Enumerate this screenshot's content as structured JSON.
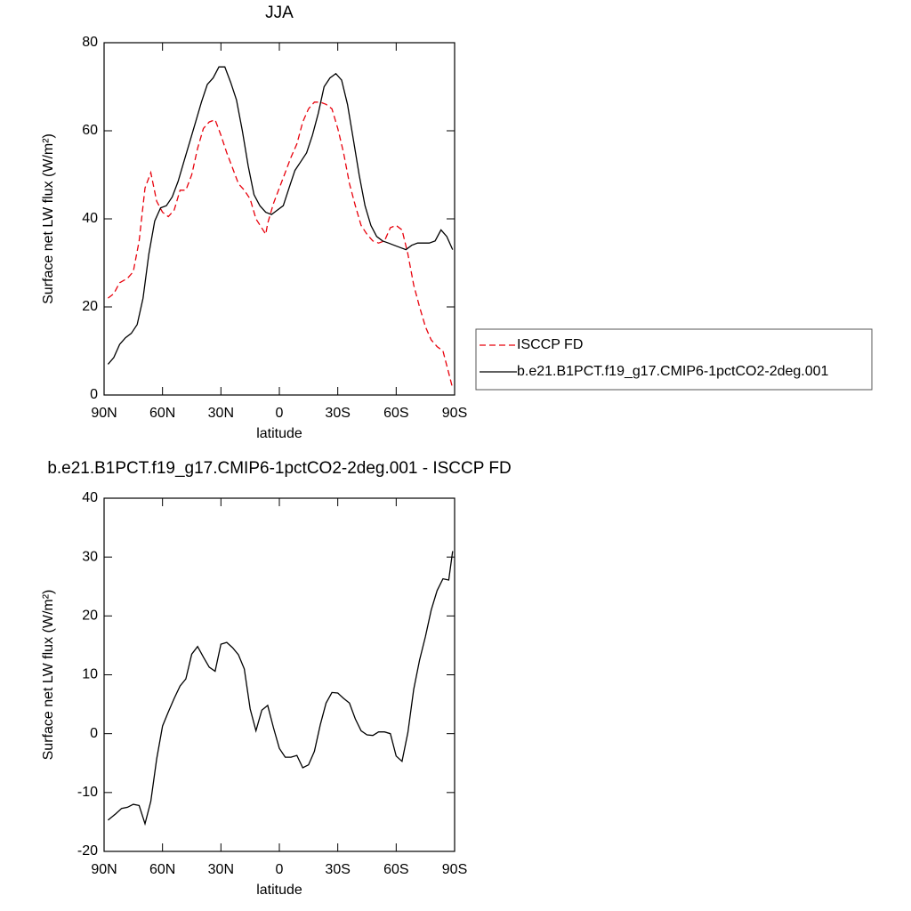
{
  "chart_data": [
    {
      "type": "line",
      "title": "JJA",
      "xlabel": "latitude",
      "ylabel": "Surface net LW flux (W/m²)",
      "xlim": [
        90,
        -90
      ],
      "xticks": [
        {
          "value": 90,
          "label": "90N"
        },
        {
          "value": 60,
          "label": "60N"
        },
        {
          "value": 30,
          "label": "30N"
        },
        0,
        {
          "value": -30,
          "label": "30S"
        },
        {
          "value": -60,
          "label": "60S"
        },
        {
          "value": -90,
          "label": "90S"
        }
      ],
      "ylim": [
        0,
        80
      ],
      "yticks": [
        0,
        20,
        40,
        60,
        80
      ],
      "legend": "right",
      "series": [
        {
          "name": "ISCCP FD",
          "color": "#e8000b",
          "line_style": "dashed",
          "x": [
            88,
            85,
            82,
            78,
            75,
            72,
            69,
            66,
            63,
            60,
            57,
            54,
            51,
            48,
            45,
            42,
            39,
            36,
            33,
            30,
            27,
            24,
            21,
            18,
            15,
            12,
            7,
            6,
            3,
            0,
            -3,
            -6,
            -9,
            -12,
            -15,
            -18,
            -21,
            -24,
            -27,
            -30,
            -33,
            -36,
            -39,
            -42,
            -45,
            -48,
            -51,
            -54,
            -57,
            -60,
            -63,
            -66,
            -69,
            -72,
            -75,
            -78,
            -81,
            -84,
            -87,
            -89
          ],
          "values": [
            22,
            23,
            25.5,
            26.5,
            28,
            35,
            47,
            50.5,
            44,
            41.5,
            40.5,
            42,
            46.5,
            46.5,
            50,
            56,
            60.5,
            62,
            62.5,
            59,
            55,
            51.5,
            48,
            46.5,
            44.5,
            40,
            36.5,
            39,
            43.5,
            47,
            50.5,
            54,
            57,
            62,
            65,
            66.5,
            66.5,
            66,
            65,
            60.5,
            55,
            48,
            43,
            38.5,
            36.5,
            35,
            34.5,
            35,
            38,
            38.5,
            37.5,
            32,
            25,
            20,
            15.5,
            12.5,
            11,
            10,
            5,
            1.5
          ]
        },
        {
          "name": "b.e21.B1PCT.f19_g17.CMIP6-1pctCO2-2deg.001",
          "color": "#000000",
          "line_style": "solid",
          "x": [
            88,
            85,
            82,
            79,
            76,
            73,
            70,
            67,
            64,
            61,
            58,
            55,
            52,
            49,
            46,
            43,
            40,
            37,
            34,
            31,
            28,
            25,
            22,
            19,
            16,
            13,
            10,
            7,
            4,
            1,
            -2,
            -5,
            -8,
            -11,
            -14,
            -17,
            -20,
            -23,
            -26,
            -29,
            -32,
            -35,
            -38,
            -41,
            -44,
            -47,
            -50,
            -53,
            -56,
            -59,
            -62,
            -65,
            -68,
            -71,
            -74,
            -77,
            -80,
            -83,
            -86,
            -89
          ],
          "values": [
            7,
            8.5,
            11.5,
            13,
            14,
            16,
            22,
            32,
            39.5,
            42.5,
            43,
            45,
            48.5,
            53,
            57.5,
            62,
            66.5,
            70.5,
            72,
            74.5,
            74.5,
            71,
            67,
            60,
            52,
            45.5,
            43,
            41.5,
            41,
            42,
            43,
            47,
            51,
            53,
            55,
            59,
            64,
            70,
            72,
            73,
            71.5,
            66,
            58,
            50,
            43,
            38.5,
            36,
            35,
            34.5,
            34,
            33.5,
            33,
            34,
            34.5,
            34.5,
            34.5,
            35,
            37.5,
            36,
            33
          ]
        }
      ]
    },
    {
      "type": "line",
      "title": "b.e21.B1PCT.f19_g17.CMIP6-1pctCO2-2deg.001 - ISCCP FD",
      "xlabel": "latitude",
      "ylabel": "Surface net LW flux (W/m²)",
      "xlim": [
        90,
        -90
      ],
      "xticks": [
        {
          "value": 90,
          "label": "90N"
        },
        {
          "value": 60,
          "label": "60N"
        },
        {
          "value": 30,
          "label": "30N"
        },
        0,
        {
          "value": -30,
          "label": "30S"
        },
        {
          "value": -60,
          "label": "60S"
        },
        {
          "value": -90,
          "label": "90S"
        }
      ],
      "ylim": [
        -20,
        40
      ],
      "yticks": [
        -20,
        -10,
        0,
        10,
        20,
        30,
        40
      ],
      "series": [
        {
          "color": "#000000",
          "line_style": "solid",
          "x": [
            88,
            84,
            81,
            78,
            75,
            72,
            69,
            66,
            63,
            60,
            57,
            54,
            51,
            48,
            45,
            42,
            39,
            36,
            33,
            30,
            27,
            24,
            21,
            18,
            15,
            12,
            9,
            6,
            3,
            0,
            -3,
            -6,
            -9,
            -12,
            -15,
            -18,
            -21,
            -24,
            -27,
            -30,
            -33,
            -36,
            -39,
            -42,
            -45,
            -48,
            -51,
            -54,
            -57,
            -60,
            -63,
            -66,
            -69,
            -72,
            -75,
            -78,
            -81,
            -84,
            -87,
            -89
          ],
          "values": [
            -14.7,
            -13.6,
            -12.7,
            -12.5,
            -12,
            -12.2,
            -15.3,
            -11.5,
            -4.3,
            1.3,
            3.7,
            6,
            8.1,
            9.3,
            13.5,
            14.8,
            13,
            11.3,
            10.6,
            15.2,
            15.5,
            14.6,
            13.4,
            11,
            4.2,
            0.5,
            4,
            4.8,
            1,
            -2.5,
            -4,
            -4,
            -3.7,
            -5.8,
            -5.3,
            -3,
            1.5,
            5.2,
            7,
            6.9,
            6,
            5.2,
            2.5,
            0.5,
            -0.2,
            -0.3,
            0.3,
            0.3,
            0,
            -3.8,
            -4.7,
            0.2,
            7.5,
            12.5,
            16.5,
            21,
            24.3,
            26.3,
            26.1,
            31
          ]
        }
      ]
    }
  ]
}
